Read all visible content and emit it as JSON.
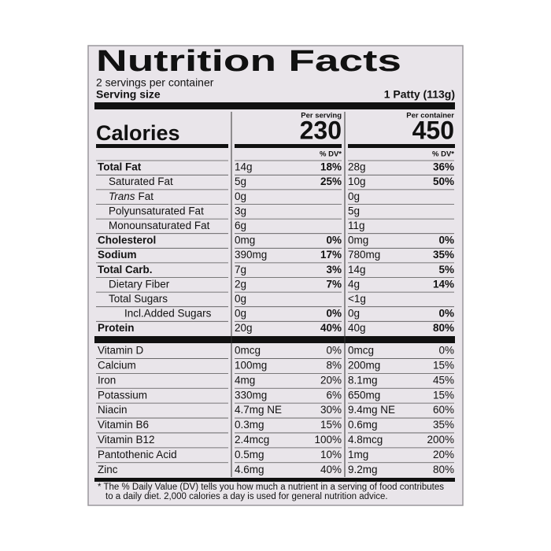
{
  "header": {
    "title": "Nutrition Facts",
    "servings": "2 servings per container",
    "serving_size_label": "Serving size",
    "serving_size": "1 Patty (113g)"
  },
  "calories": {
    "label": "Calories",
    "per_serving_label": "Per serving",
    "per_serving": "230",
    "per_container_label": "Per container",
    "per_container": "450"
  },
  "dv_label": "% DV*",
  "rows": [
    {
      "name": "Total Fat",
      "bold": true,
      "indent": 0,
      "amount1": "14g",
      "dv1": "18%",
      "amount2": "28g",
      "dv2": "36%"
    },
    {
      "name": "Saturated Fat",
      "bold": false,
      "indent": 1,
      "amount1": "5g",
      "dv1": "25%",
      "amount2": "10g",
      "dv2": "50%"
    },
    {
      "name_italic": "Trans",
      "name": "Fat",
      "bold": false,
      "indent": 1,
      "amount1": "0g",
      "amount2": "0g"
    },
    {
      "name": "Polyunsaturated Fat",
      "bold": false,
      "indent": 1,
      "amount1": "3g",
      "amount2": "5g"
    },
    {
      "name": "Monounsaturated Fat",
      "bold": false,
      "indent": 1,
      "amount1": "6g",
      "amount2": "11g"
    },
    {
      "name": "Cholesterol",
      "bold": true,
      "indent": 0,
      "amount1": "0mg",
      "dv1": "0%",
      "amount2": "0mg",
      "dv2": "0%"
    },
    {
      "name": "Sodium",
      "bold": true,
      "indent": 0,
      "amount1": "390mg",
      "dv1": "17%",
      "amount2": "780mg",
      "dv2": "35%"
    },
    {
      "name": "Total Carb.",
      "bold": true,
      "indent": 0,
      "amount1": "7g",
      "dv1": "3%",
      "amount2": "14g",
      "dv2": "5%"
    },
    {
      "name": "Dietary Fiber",
      "bold": false,
      "indent": 1,
      "amount1": "2g",
      "dv1": "7%",
      "amount2": "4g",
      "dv2": "14%"
    },
    {
      "name": "Total Sugars",
      "bold": false,
      "indent": 1,
      "amount1": "0g",
      "amount2": "<1g"
    },
    {
      "name": "Incl.Added Sugars",
      "bold": false,
      "indent": 2,
      "amount1": "0g",
      "dv1": "0%",
      "amount2": "0g",
      "dv2": "0%"
    },
    {
      "name": "Protein",
      "bold": true,
      "indent": 0,
      "amount1": "20g",
      "dv1": "40%",
      "amount2": "40g",
      "dv2": "80%"
    }
  ],
  "vitamins": [
    {
      "name": "Vitamin D",
      "amount1": "0mcg",
      "dv1": "0%",
      "amount2": "0mcg",
      "dv2": "0%"
    },
    {
      "name": "Calcium",
      "amount1": "100mg",
      "dv1": "8%",
      "amount2": "200mg",
      "dv2": "15%"
    },
    {
      "name": "Iron",
      "amount1": "4mg",
      "dv1": "20%",
      "amount2": "8.1mg",
      "dv2": "45%"
    },
    {
      "name": "Potassium",
      "amount1": "330mg",
      "dv1": "6%",
      "amount2": "650mg",
      "dv2": "15%"
    },
    {
      "name": "Niacin",
      "amount1": "4.7mg NE",
      "dv1": "30%",
      "amount2": "9.4mg NE",
      "dv2": "60%"
    },
    {
      "name": "Vitamin B6",
      "amount1": "0.3mg",
      "dv1": "15%",
      "amount2": "0.6mg",
      "dv2": "35%"
    },
    {
      "name": "Vitamin B12",
      "amount1": "2.4mcg",
      "dv1": "100%",
      "amount2": "4.8mcg",
      "dv2": "200%"
    },
    {
      "name": "Pantothenic Acid",
      "amount1": "0.5mg",
      "dv1": "10%",
      "amount2": "1mg",
      "dv2": "20%"
    },
    {
      "name": "Zinc",
      "amount1": "4.6mg",
      "dv1": "40%",
      "amount2": "9.2mg",
      "dv2": "80%"
    }
  ],
  "footnote": [
    "* The % Daily Value (DV) tells you how much a nutrient in a serving of food contributes",
    "to a daily diet. 2,000 calories a day is used for general nutrition advice."
  ]
}
